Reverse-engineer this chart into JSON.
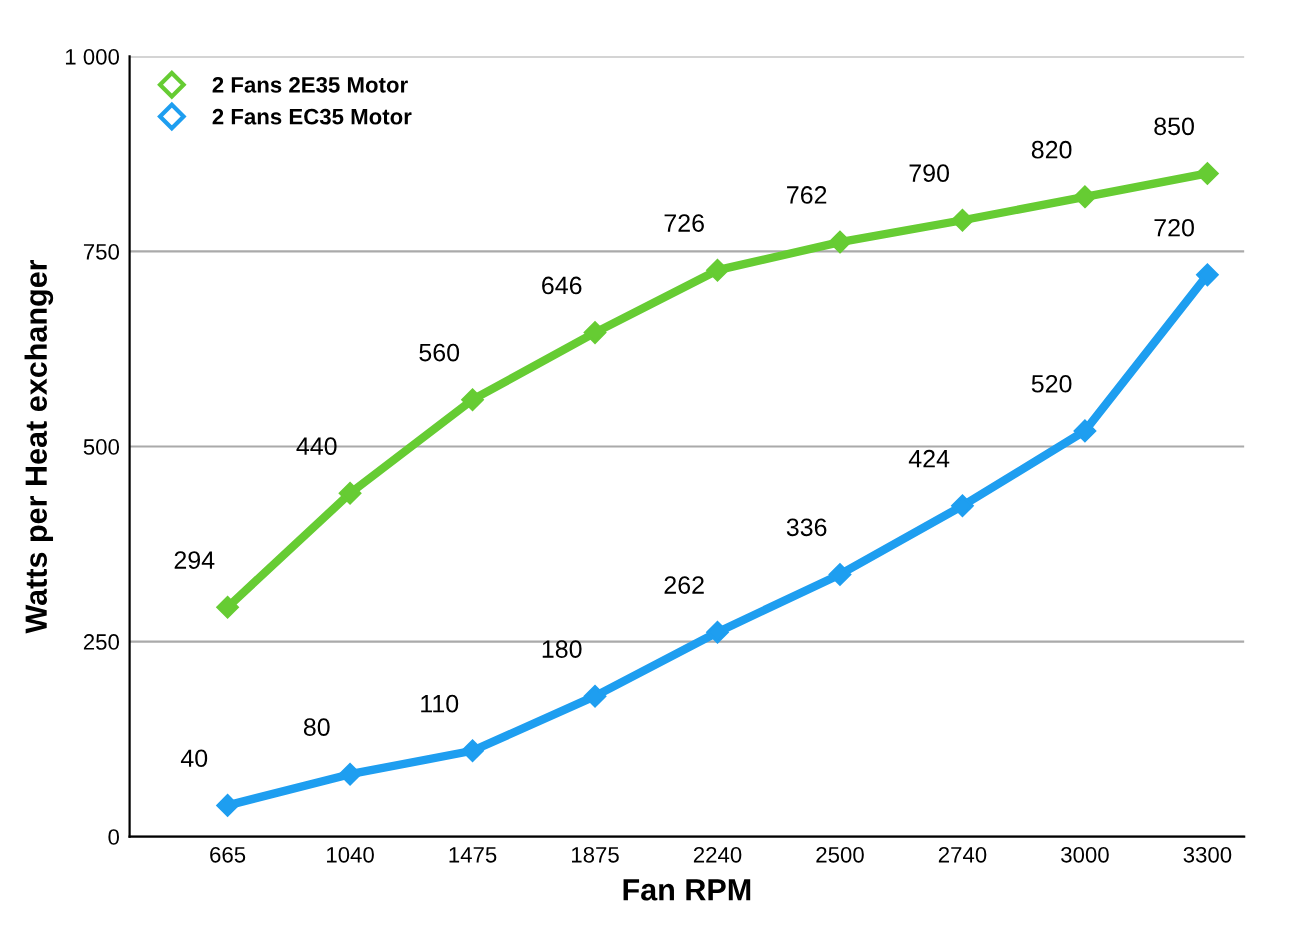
{
  "chart_data": {
    "type": "line",
    "xlabel": "Fan RPM",
    "ylabel": "Watts per Heat exchanger",
    "categories": [
      "665",
      "1040",
      "1475",
      "1875",
      "2240",
      "2500",
      "2740",
      "3000",
      "3300"
    ],
    "series": [
      {
        "name": "2 Fans 2E35 Motor",
        "color": "#66cc33",
        "values": [
          294,
          440,
          560,
          646,
          726,
          762,
          790,
          820,
          850
        ]
      },
      {
        "name": "2 Fans EC35 Motor",
        "color": "#1e9ef0",
        "values": [
          40,
          80,
          110,
          180,
          262,
          336,
          424,
          520,
          720
        ]
      }
    ],
    "ylim": [
      0,
      1000
    ],
    "yticks": [
      0,
      250,
      500,
      750,
      {
        "value": 1000,
        "label": "1 000"
      }
    ],
    "grid": "y",
    "legend": "top left",
    "marker": "diamond",
    "line_style": "solid",
    "data_labels": true
  }
}
